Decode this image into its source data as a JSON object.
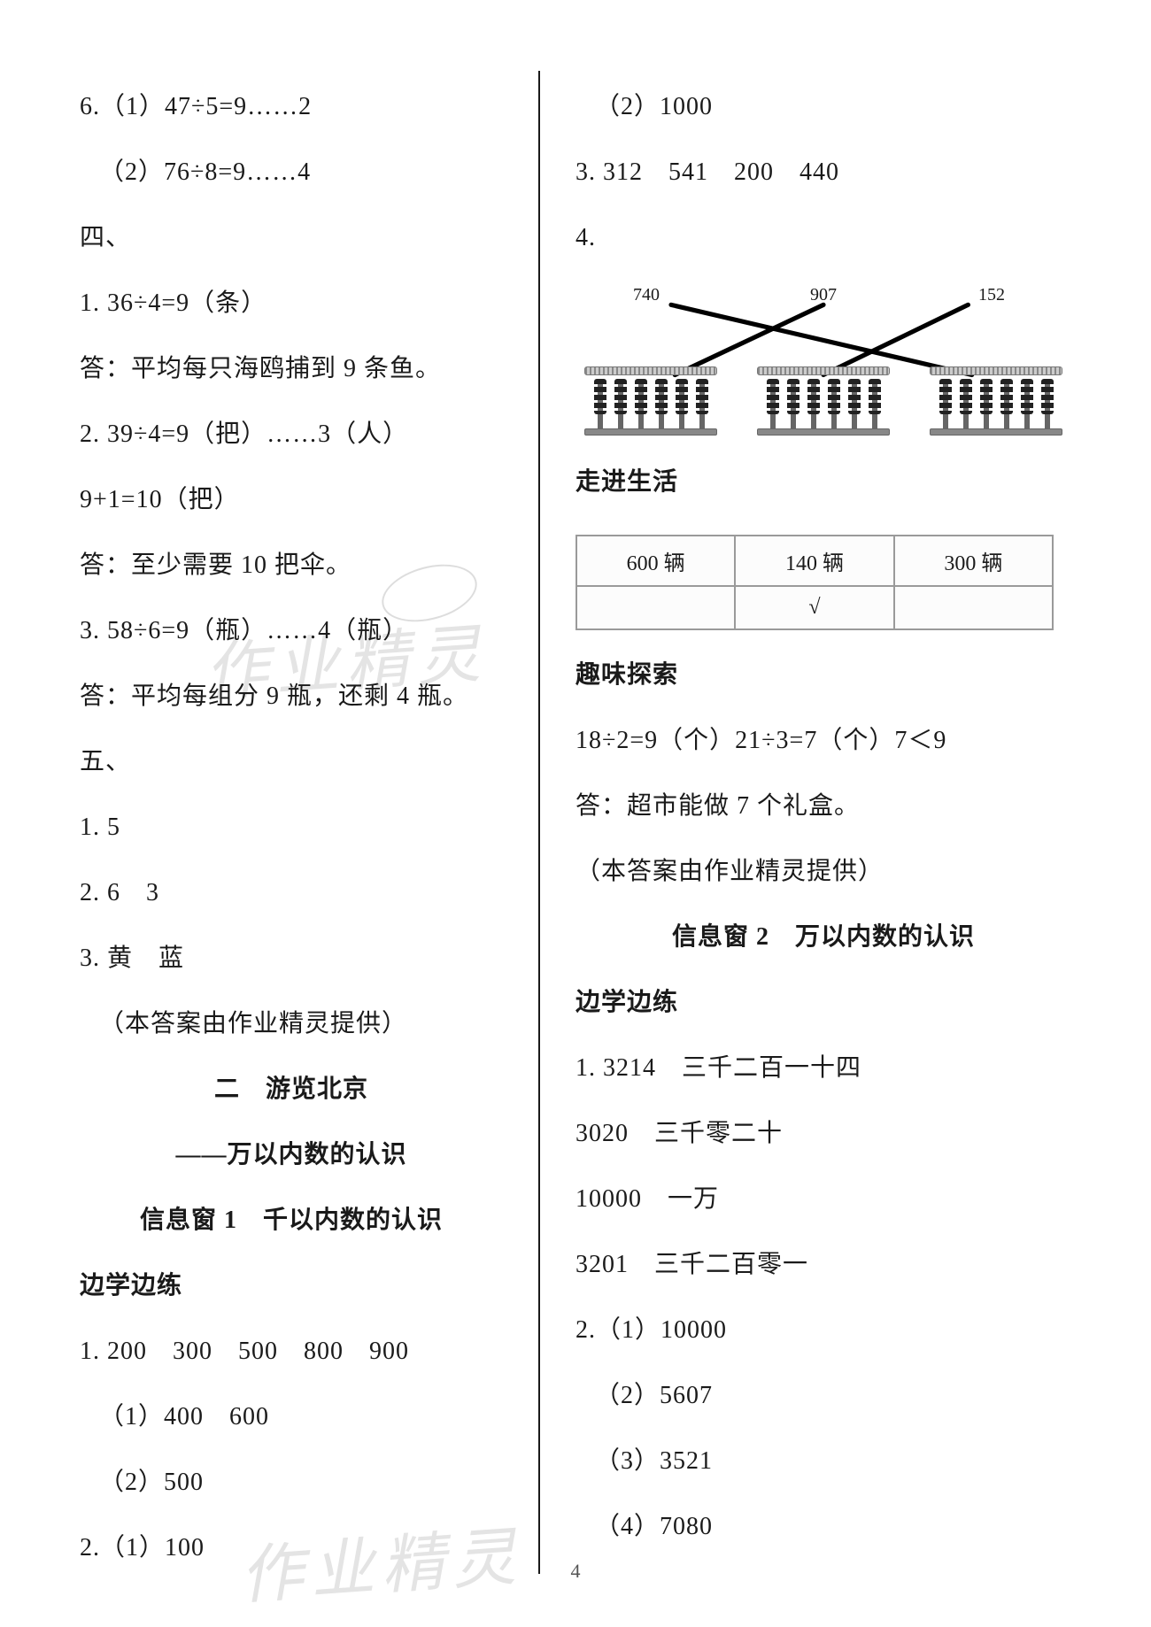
{
  "left": {
    "l1": "6.（1）47÷5=9……2",
    "l2": "（2）76÷8=9……4",
    "l3": "四、",
    "l4": "1. 36÷4=9（条）",
    "l5": "答：平均每只海鸥捕到 9 条鱼。",
    "l6": "2. 39÷4=9（把）……3（人）",
    "l7": "9+1=10（把）",
    "l8": "答：至少需要 10 把伞。",
    "l9": "3. 58÷6=9（瓶）……4（瓶）",
    "l10": "答：平均每组分 9 瓶，还剩 4 瓶。",
    "l11": "五、",
    "l12": "1. 5",
    "l13": "2. 6　3",
    "l14": "3. 黄　蓝",
    "l15": "（本答案由作业精灵提供）",
    "h1": "二　游览北京",
    "h2": "——万以内数的认识",
    "h3": "信息窗 1　千以内数的认识",
    "h4": "边学边练",
    "l16": "1. 200　300　500　800　900",
    "l17": "（1）400　600",
    "l18": "（2）500",
    "l19": "2.（1）100"
  },
  "right": {
    "r1": "（2）1000",
    "r2": "3. 312　541　200　440",
    "r3": "4.",
    "abacus": {
      "top_labels": [
        "740",
        "907",
        "152"
      ],
      "top_x": [
        80,
        280,
        470
      ],
      "bottom_x": [
        10,
        205,
        400
      ],
      "edges": [
        {
          "from": 0,
          "to": 2,
          "color": "#000000"
        },
        {
          "from": 1,
          "to": 0,
          "color": "#000000"
        },
        {
          "from": 2,
          "to": 1,
          "color": "#000000"
        }
      ],
      "line_width": 6
    },
    "h_life": "走进生活",
    "life_table": {
      "columns": [
        "600 辆",
        "140 辆",
        "300 辆"
      ],
      "row2": [
        "",
        "√",
        ""
      ],
      "border_color": "#9a9a9a",
      "cell_fontsize": 24
    },
    "h_fun": "趣味探索",
    "r4": "18÷2=9（个）21÷3=7（个）7＜9",
    "r5": "答：超市能做 7 个礼盒。",
    "r6": "（本答案由作业精灵提供）",
    "h_sec2": "信息窗 2　万以内数的认识",
    "h_prac2": "边学边练",
    "r7": "1. 3214　三千二百一十四",
    "r8": "3020　三千零二十",
    "r9": "10000　一万",
    "r10": "3201　三千二百零一",
    "r11": "2.（1）10000",
    "r12": "（2）5607",
    "r13": "（3）3521",
    "r14": "（4）7080"
  },
  "watermarks": {
    "text1": "作业精灵",
    "text2": "作业精灵"
  },
  "page_number": "4",
  "colors": {
    "text": "#1a1a1a",
    "watermark": "#e4e4e4",
    "background": "#ffffff",
    "divider": "#1a1a1a"
  },
  "typography": {
    "body_fontsize": 28,
    "heading_weight": "bold"
  }
}
